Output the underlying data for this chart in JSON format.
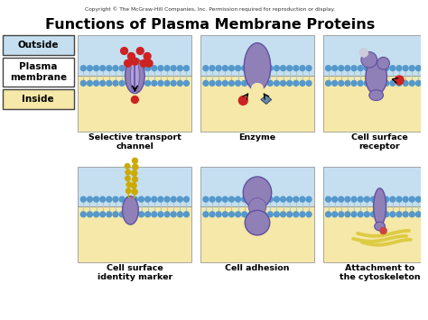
{
  "title": "Functions of Plasma Membrane Proteins",
  "copyright": "Copyright © The McGraw-Hill Companies, Inc. Permission required for reproduction or display.",
  "bg_color": "#ffffff",
  "outside_color": "#c5dff0",
  "inside_color": "#f5e8a8",
  "protein_color": "#9080b8",
  "protein_dark": "#6050a0",
  "bilayer_head_color": "#5598cc",
  "bilayer_tail_color": "#aaccdd",
  "label_outside": "Outside",
  "label_plasma": "Plasma\nmembrane",
  "label_inside": "Inside",
  "panel_labels": [
    "Selective transport\nchannel",
    "Enzyme",
    "Cell surface\nreceptor",
    "Cell surface\nidentity marker",
    "Cell adhesion",
    "Attachment to\nthe cytoskeleton"
  ],
  "red_color": "#cc2222",
  "gold_color": "#ccaa00",
  "blue_gray": "#7788aa",
  "arrow_color": "#111111"
}
